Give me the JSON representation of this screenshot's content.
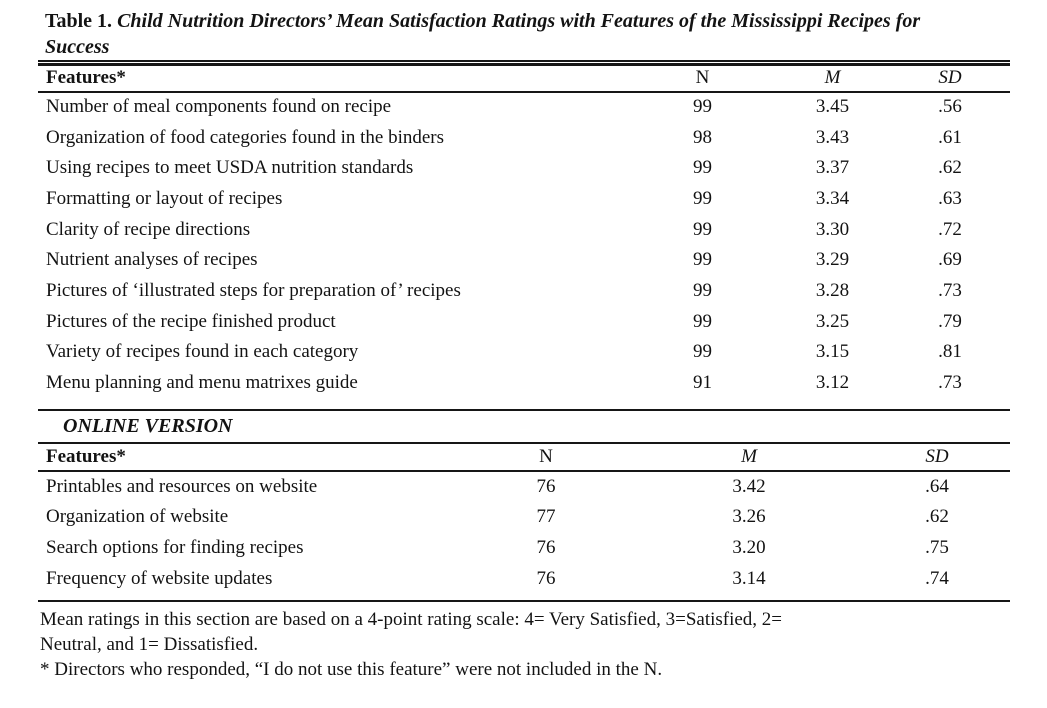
{
  "title": {
    "label": "Table 1. ",
    "caption": "Child Nutrition Directors’ Mean Satisfaction Ratings with Features of the Mississippi Recipes for Success"
  },
  "print_table": {
    "headers": {
      "features": "Features*",
      "n": "N",
      "m": "M",
      "sd": "SD"
    },
    "rows": [
      {
        "feature": "Number of meal components found on recipe",
        "n": "99",
        "m": "3.45",
        "sd": ".56"
      },
      {
        "feature": "Organization of food categories found in the binders",
        "n": "98",
        "m": "3.43",
        "sd": ".61"
      },
      {
        "feature": "Using recipes to meet USDA nutrition standards",
        "n": "99",
        "m": "3.37",
        "sd": ".62"
      },
      {
        "feature": "Formatting or layout of recipes",
        "n": "99",
        "m": "3.34",
        "sd": ".63"
      },
      {
        "feature": "Clarity of recipe directions",
        "n": "99",
        "m": "3.30",
        "sd": ".72"
      },
      {
        "feature": "Nutrient analyses of recipes",
        "n": "99",
        "m": "3.29",
        "sd": ".69"
      },
      {
        "feature": "Pictures of ‘illustrated steps for preparation of’ recipes",
        "n": "99",
        "m": "3.28",
        "sd": ".73"
      },
      {
        "feature": "Pictures of the recipe finished product",
        "n": "99",
        "m": "3.25",
        "sd": ".79"
      },
      {
        "feature": "Variety of recipes found in each category",
        "n": "99",
        "m": "3.15",
        "sd": ".81"
      },
      {
        "feature": "Menu planning and menu matrixes guide",
        "n": "91",
        "m": "3.12",
        "sd": ".73"
      }
    ]
  },
  "online_section": {
    "banner": "ONLINE VERSION"
  },
  "online_table": {
    "headers": {
      "features": "Features*",
      "n": "N",
      "m": "M",
      "sd": "SD"
    },
    "rows": [
      {
        "feature": "Printables and resources on website",
        "n": "76",
        "m": "3.42",
        "sd": ".64"
      },
      {
        "feature": "Organization of website",
        "n": "77",
        "m": "3.26",
        "sd": ".62"
      },
      {
        "feature": "Search options for finding recipes",
        "n": "76",
        "m": "3.20",
        "sd": ".75"
      },
      {
        "feature": "Frequency of website updates",
        "n": "76",
        "m": "3.14",
        "sd": ".74"
      }
    ]
  },
  "footnotes": {
    "scale_line1": "Mean ratings in this section are based on a 4-point rating scale: 4= Very Satisfied, 3=Satisfied, 2=",
    "scale_line2": "Neutral, and 1= Dissatisfied.",
    "asterisk": "* Directors who responded, “I do not use this feature” were not included in the N."
  }
}
